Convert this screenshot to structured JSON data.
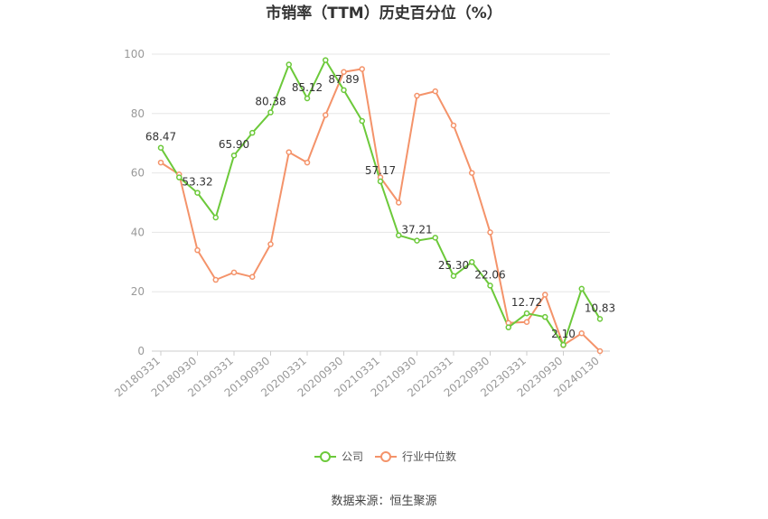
{
  "chart_data": {
    "type": "line",
    "title": "市销率（TTM）历史百分位（%）",
    "xlabel": "",
    "ylabel": "",
    "ylim": [
      0,
      100
    ],
    "yticks": [
      0,
      20,
      40,
      60,
      80,
      100
    ],
    "grid": true,
    "legend_position": "bottom",
    "x": [
      "20180331",
      "20180630",
      "20180930",
      "20181231",
      "20190331",
      "20190630",
      "20190930",
      "20191231",
      "20200331",
      "20200630",
      "20200930",
      "20201231",
      "20210331",
      "20210630",
      "20210930",
      "20211231",
      "20220331",
      "20220630",
      "20220930",
      "20221231",
      "20230331",
      "20230630",
      "20230930",
      "20231231",
      "20240130"
    ],
    "x_tick_labels": [
      "20180331",
      "20180930",
      "20190331",
      "20190930",
      "20200331",
      "20200930",
      "20210331",
      "20210930",
      "20220331",
      "20220930",
      "20230331",
      "20230930",
      "20240130"
    ],
    "series": [
      {
        "name": "公司",
        "color": "#6cc93a",
        "values": [
          68.47,
          58.5,
          53.32,
          45.0,
          65.9,
          73.5,
          80.38,
          96.5,
          85.12,
          98.0,
          87.89,
          77.5,
          57.17,
          39.0,
          37.21,
          38.2,
          25.3,
          30.0,
          22.06,
          8.0,
          12.72,
          11.5,
          2.1,
          21.0,
          10.83
        ],
        "data_labels": [
          {
            "index": 0,
            "text": "68.47"
          },
          {
            "index": 2,
            "text": "53.32"
          },
          {
            "index": 4,
            "text": "65.90"
          },
          {
            "index": 6,
            "text": "80.38"
          },
          {
            "index": 8,
            "text": "85.12"
          },
          {
            "index": 10,
            "text": "87.89"
          },
          {
            "index": 12,
            "text": "57.17"
          },
          {
            "index": 14,
            "text": "37.21"
          },
          {
            "index": 16,
            "text": "25.30"
          },
          {
            "index": 18,
            "text": "22.06"
          },
          {
            "index": 20,
            "text": "12.72"
          },
          {
            "index": 22,
            "text": "2.10"
          },
          {
            "index": 24,
            "text": "10.83"
          }
        ]
      },
      {
        "name": "行业中位数",
        "color": "#f4936a",
        "values": [
          63.5,
          59.5,
          34.0,
          24.0,
          26.5,
          25.0,
          36.0,
          67.0,
          63.5,
          79.5,
          94.0,
          95.0,
          58.5,
          50.0,
          86.0,
          87.5,
          76.0,
          60.0,
          40.0,
          9.5,
          9.8,
          19.0,
          2.0,
          6.0,
          0.0
        ]
      }
    ]
  },
  "source": "数据来源：恒生聚源"
}
